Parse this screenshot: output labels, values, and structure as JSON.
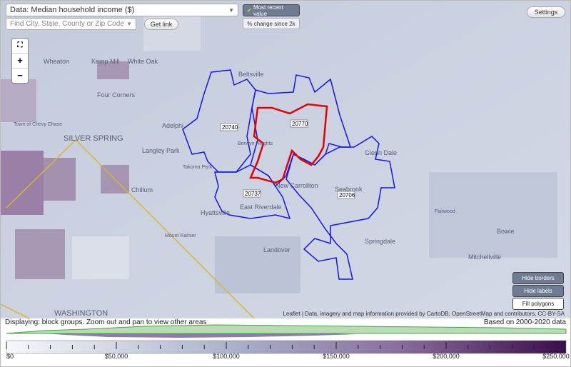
{
  "controls": {
    "data_select": "Data: Median household income ($)",
    "search_placeholder": "Find City, State, County or Zip Code",
    "get_link": "Get link",
    "most_recent": "Most recent value",
    "pct_change": "% change since 2k",
    "settings": "Settings",
    "zoom_in": "+",
    "zoom_out": "−"
  },
  "map": {
    "places": [
      "Wheaton",
      "Kemp Mill",
      "White Oak",
      "Beltsville",
      "Four Corners",
      "Adelphi",
      "Langley Park",
      "SILVER SPRING",
      "Chillum",
      "Hyattsville",
      "Mount Rainier",
      "East Riverdale",
      "Landover",
      "Glenn Dale",
      "Seabrook",
      "Springdale",
      "Fairwood",
      "Bowie",
      "Mitchellville",
      "WASHINGTON",
      "Berwyn Heights",
      "New Carrollton",
      "Town of Chevy Chase",
      "Takoma Park"
    ],
    "zip_labels": [
      "20740",
      "20770",
      "20737",
      "20706"
    ],
    "attribution": "Leaflet | Data, imagery and map information provided by CartoDB, OpenStreetMap and contributors, CC-BY-SA"
  },
  "layer_buttons": [
    "Hide borders",
    "Hide labels",
    "Fill polygons"
  ],
  "status": {
    "displaying": "Displaying: block groups. Zoom out and pan to view other areas",
    "based_on": "Based on 2000-2020 data"
  },
  "scale": {
    "labels": [
      "$0",
      "$50,000",
      "$100,000",
      "$150,000",
      "$200,000",
      "$250,000"
    ]
  }
}
